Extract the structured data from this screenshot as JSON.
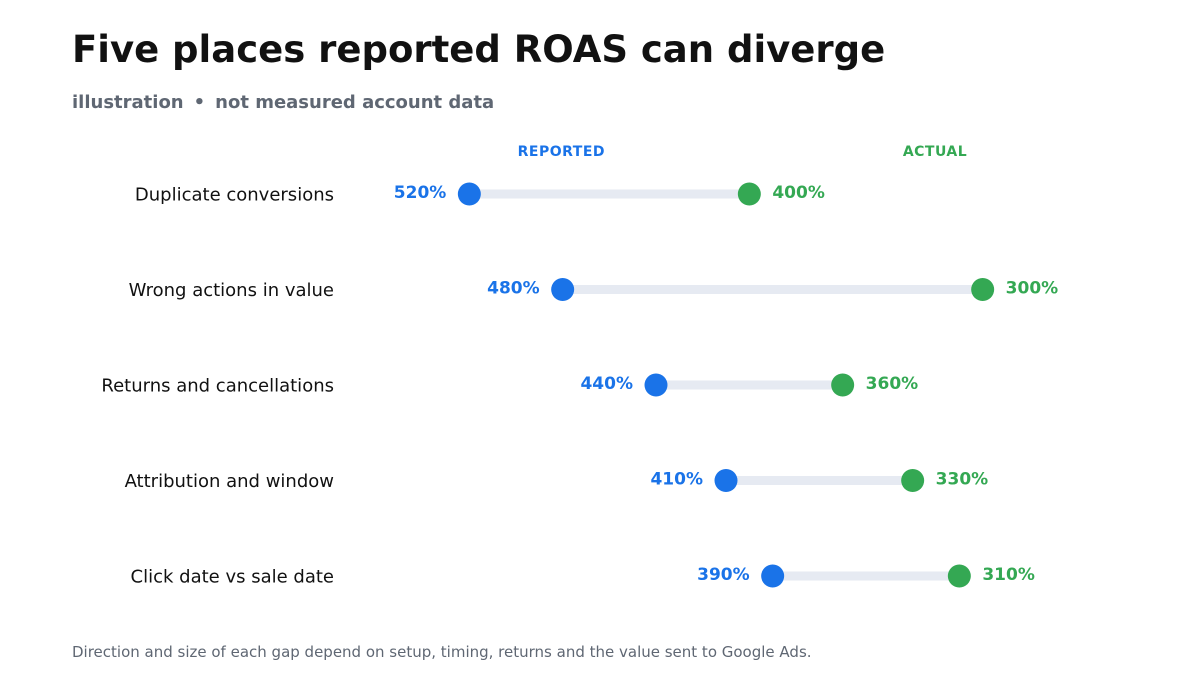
{
  "header": {
    "title": "Five places reported ROAS can diverge",
    "subtitle_left": "illustration",
    "subtitle_sep": "•",
    "subtitle_right": "not measured account data"
  },
  "footnote": "Direction and size of each gap depend on setup, timing, returns and the value sent to Google Ads.",
  "colors": {
    "reported": "#1a73e8",
    "actual": "#34a853",
    "connector": "#e6eaf2",
    "category_text": "#111111"
  },
  "chart_data": {
    "type": "dumbbell",
    "title": "Five places reported ROAS can diverge",
    "value_unit": "%",
    "series": [
      {
        "name": "REPORTED",
        "values": [
          520,
          480,
          440,
          410,
          390
        ]
      },
      {
        "name": "ACTUAL",
        "values": [
          400,
          300,
          360,
          330,
          310
        ]
      }
    ],
    "categories": [
      "Duplicate conversions",
      "Wrong actions in value",
      "Returns and cancellations",
      "Attribution and window",
      "Click date vs sale date"
    ],
    "value_labels": {
      "reported": [
        "520%",
        "480%",
        "440%",
        "410%",
        "390%"
      ],
      "actual": [
        "400%",
        "300%",
        "360%",
        "330%",
        "310%"
      ]
    },
    "axis": {
      "shown": false,
      "reversed": true
    },
    "grid": false,
    "legend": "top"
  }
}
